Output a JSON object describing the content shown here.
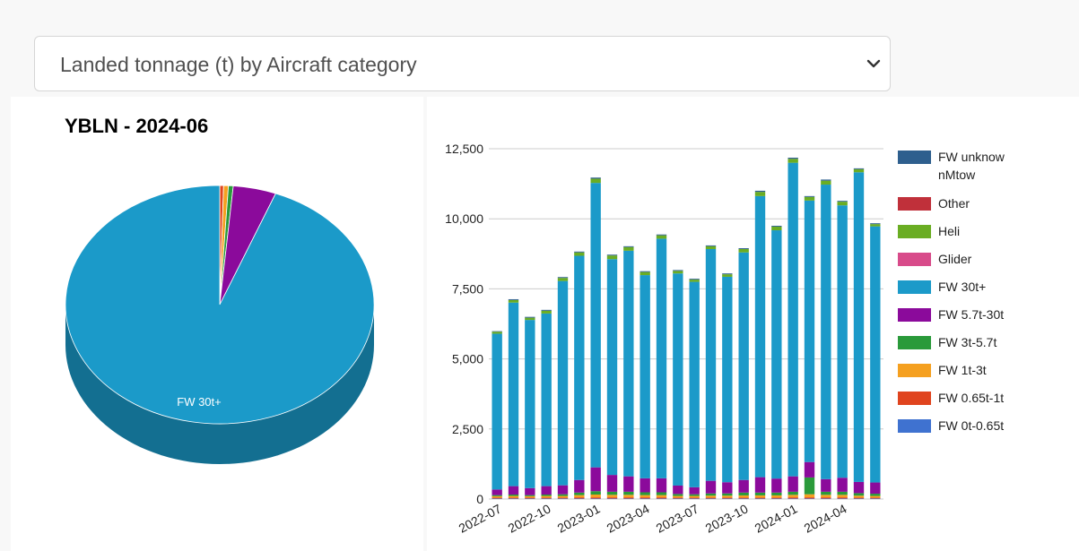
{
  "selector": {
    "selected": "Landed tonnage (t) by Aircraft category",
    "chevron_icon": "chevron-down-icon"
  },
  "pie": {
    "title": "YBLN - 2024-06",
    "slice_label": "FW 30t+"
  },
  "legend": [
    {
      "label": "FW unknownMtow",
      "color": "#2e5f8e"
    },
    {
      "label": "Other",
      "color": "#c0303a"
    },
    {
      "label": "Heli",
      "color": "#6aad23"
    },
    {
      "label": "Glider",
      "color": "#d84b8a"
    },
    {
      "label": "FW 30t+",
      "color": "#1b9ac9"
    },
    {
      "label": "FW 5.7t-30t",
      "color": "#8b0a9b"
    },
    {
      "label": "FW 3t-5.7t",
      "color": "#2a9a3a"
    },
    {
      "label": "FW 1t-3t",
      "color": "#f5a020"
    },
    {
      "label": "FW 0.65t-1t",
      "color": "#e0441e"
    },
    {
      "label": "FW 0t-0.65t",
      "color": "#3f72d0"
    }
  ],
  "chart_data": [
    {
      "type": "pie",
      "title": "YBLN - 2024-06",
      "slices": [
        {
          "name": "FW 30t+",
          "value": 94.1,
          "color": "#1b9ac9"
        },
        {
          "name": "FW 5.7t-30t",
          "value": 4.5,
          "color": "#8b0a9b"
        },
        {
          "name": "FW 3t-5.7t",
          "value": 0.5,
          "color": "#2a9a3a"
        },
        {
          "name": "FW 1t-3t",
          "value": 0.5,
          "color": "#f5a020"
        },
        {
          "name": "FW 0.65t-1t",
          "value": 0.4,
          "color": "#e0441e"
        }
      ]
    },
    {
      "type": "bar",
      "stacked": true,
      "ylim": [
        0,
        12500
      ],
      "yticks": [
        "0",
        "2,500",
        "5,000",
        "7,500",
        "10,000",
        "12,500"
      ],
      "ytick_values": [
        0,
        2500,
        5000,
        7500,
        10000,
        12500
      ],
      "grid": true,
      "legend_position": "right",
      "x_tick_labels": [
        {
          "index": 0,
          "label": "2022-07"
        },
        {
          "index": 3,
          "label": "2022-10"
        },
        {
          "index": 6,
          "label": "2023-01"
        },
        {
          "index": 9,
          "label": "2023-04"
        },
        {
          "index": 12,
          "label": "2023-07"
        },
        {
          "index": 15,
          "label": "2023-10"
        },
        {
          "index": 18,
          "label": "2024-01"
        },
        {
          "index": 21,
          "label": "2024-04"
        }
      ],
      "categories": [
        "2022-07",
        "2022-08",
        "2022-09",
        "2022-10",
        "2022-11",
        "2022-12",
        "2023-01",
        "2023-02",
        "2023-03",
        "2023-04",
        "2023-05",
        "2023-06",
        "2023-07",
        "2023-08",
        "2023-09",
        "2023-10",
        "2023-11",
        "2023-12",
        "2024-01",
        "2024-02",
        "2024-03",
        "2024-04",
        "2024-05",
        "2024-06"
      ],
      "series": [
        {
          "name": "FW 0t-0.65t",
          "color": "#3f72d0",
          "values": [
            20,
            20,
            20,
            20,
            20,
            20,
            20,
            20,
            20,
            20,
            20,
            20,
            20,
            20,
            20,
            20,
            20,
            20,
            20,
            20,
            20,
            20,
            20,
            20
          ]
        },
        {
          "name": "FW 0.65t-1t",
          "color": "#e0441e",
          "values": [
            30,
            30,
            30,
            30,
            30,
            40,
            40,
            40,
            40,
            40,
            40,
            30,
            30,
            30,
            30,
            30,
            30,
            30,
            40,
            40,
            40,
            40,
            30,
            30
          ]
        },
        {
          "name": "FW 1t-3t",
          "color": "#f5a020",
          "values": [
            50,
            60,
            50,
            60,
            60,
            80,
            100,
            90,
            90,
            80,
            80,
            60,
            60,
            70,
            70,
            80,
            80,
            80,
            90,
            110,
            90,
            90,
            70,
            60
          ]
        },
        {
          "name": "FW 3t-5.7t",
          "color": "#2a9a3a",
          "values": [
            40,
            50,
            40,
            50,
            60,
            90,
            120,
            110,
            110,
            100,
            100,
            70,
            60,
            80,
            80,
            100,
            100,
            100,
            110,
            600,
            110,
            110,
            90,
            80
          ]
        },
        {
          "name": "FW 5.7t-30t",
          "color": "#8b0a9b",
          "values": [
            200,
            300,
            250,
            300,
            320,
            450,
            850,
            600,
            550,
            500,
            500,
            300,
            250,
            450,
            400,
            450,
            550,
            500,
            550,
            550,
            450,
            500,
            400,
            400
          ]
        },
        {
          "name": "FW 30t+",
          "color": "#1b9ac9",
          "values": [
            5560,
            6550,
            6000,
            6160,
            7290,
            8000,
            10150,
            7700,
            8050,
            7250,
            8550,
            7570,
            7330,
            8270,
            7330,
            8120,
            10030,
            8860,
            11190,
            9330,
            10510,
            9720,
            11050,
            9140
          ]
        },
        {
          "name": "Glider",
          "color": "#d84b8a",
          "values": [
            0,
            0,
            0,
            0,
            0,
            0,
            0,
            0,
            0,
            0,
            0,
            0,
            0,
            0,
            0,
            0,
            0,
            0,
            0,
            0,
            0,
            0,
            0,
            0
          ]
        },
        {
          "name": "Heli",
          "color": "#6aad23",
          "values": [
            70,
            90,
            80,
            100,
            110,
            120,
            150,
            130,
            130,
            110,
            120,
            90,
            80,
            100,
            90,
            120,
            150,
            130,
            140,
            130,
            140,
            130,
            110,
            80
          ]
        },
        {
          "name": "Other",
          "color": "#c0303a",
          "values": [
            0,
            0,
            0,
            0,
            0,
            0,
            0,
            0,
            0,
            0,
            0,
            0,
            0,
            0,
            0,
            0,
            0,
            0,
            0,
            0,
            0,
            0,
            0,
            0
          ]
        },
        {
          "name": "FW unknownMtow",
          "color": "#2e5f8e",
          "values": [
            20,
            30,
            30,
            30,
            30,
            30,
            40,
            30,
            30,
            30,
            30,
            30,
            30,
            30,
            30,
            30,
            40,
            30,
            40,
            30,
            40,
            30,
            30,
            30
          ]
        }
      ]
    }
  ]
}
